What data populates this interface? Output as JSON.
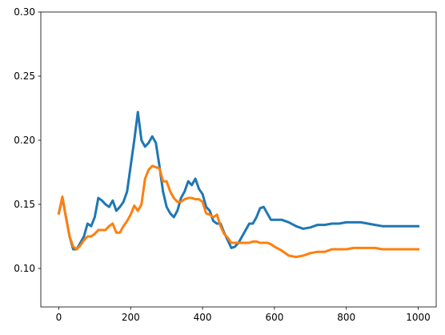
{
  "chart_data": {
    "type": "line",
    "x": [
      0,
      10,
      20,
      30,
      40,
      50,
      60,
      70,
      80,
      90,
      100,
      110,
      120,
      130,
      140,
      150,
      160,
      170,
      180,
      190,
      200,
      210,
      220,
      230,
      240,
      250,
      260,
      270,
      280,
      290,
      300,
      310,
      320,
      330,
      340,
      350,
      360,
      370,
      380,
      390,
      400,
      410,
      420,
      430,
      440,
      450,
      460,
      470,
      480,
      490,
      500,
      510,
      520,
      530,
      540,
      550,
      560,
      570,
      580,
      590,
      600,
      620,
      640,
      660,
      680,
      700,
      720,
      740,
      760,
      780,
      800,
      820,
      840,
      860,
      880,
      900,
      920,
      940,
      960,
      980,
      1000
    ],
    "series": [
      {
        "color": "#1f77b4",
        "values": [
          0.143,
          0.155,
          0.14,
          0.125,
          0.115,
          0.115,
          0.12,
          0.125,
          0.135,
          0.133,
          0.14,
          0.155,
          0.153,
          0.15,
          0.148,
          0.153,
          0.145,
          0.148,
          0.152,
          0.16,
          0.18,
          0.2,
          0.222,
          0.2,
          0.195,
          0.198,
          0.203,
          0.198,
          0.18,
          0.16,
          0.148,
          0.143,
          0.14,
          0.145,
          0.155,
          0.16,
          0.168,
          0.165,
          0.17,
          0.162,
          0.158,
          0.148,
          0.145,
          0.137,
          0.135,
          0.135,
          0.128,
          0.122,
          0.116,
          0.117,
          0.12,
          0.125,
          0.13,
          0.135,
          0.135,
          0.14,
          0.147,
          0.148,
          0.143,
          0.138,
          0.138,
          0.138,
          0.136,
          0.133,
          0.131,
          0.132,
          0.134,
          0.134,
          0.135,
          0.135,
          0.136,
          0.136,
          0.136,
          0.135,
          0.134,
          0.133,
          0.133,
          0.133,
          0.133,
          0.133,
          0.133
        ]
      },
      {
        "color": "#ff7f0e",
        "values": [
          0.143,
          0.156,
          0.14,
          0.125,
          0.117,
          0.115,
          0.118,
          0.122,
          0.125,
          0.125,
          0.127,
          0.13,
          0.13,
          0.13,
          0.133,
          0.135,
          0.128,
          0.128,
          0.133,
          0.137,
          0.142,
          0.149,
          0.145,
          0.15,
          0.17,
          0.177,
          0.18,
          0.179,
          0.178,
          0.168,
          0.168,
          0.16,
          0.155,
          0.152,
          0.152,
          0.154,
          0.155,
          0.155,
          0.154,
          0.154,
          0.152,
          0.143,
          0.142,
          0.14,
          0.142,
          0.133,
          0.127,
          0.124,
          0.12,
          0.12,
          0.12,
          0.12,
          0.12,
          0.12,
          0.121,
          0.121,
          0.12,
          0.12,
          0.12,
          0.119,
          0.117,
          0.114,
          0.11,
          0.109,
          0.11,
          0.112,
          0.113,
          0.113,
          0.115,
          0.115,
          0.115,
          0.116,
          0.116,
          0.116,
          0.116,
          0.115,
          0.115,
          0.115,
          0.115,
          0.115,
          0.115
        ]
      }
    ],
    "xlim": [
      -50,
      1050
    ],
    "xticks": [
      0,
      200,
      400,
      600,
      800,
      1000
    ],
    "ylim": [
      0.07,
      0.3
    ],
    "yticks": [
      {
        "value": 0.1,
        "label": "0.10"
      },
      {
        "value": 0.15,
        "label": "0.15"
      },
      {
        "value": 0.2,
        "label": "0.20"
      },
      {
        "value": 0.25,
        "label": "0.25"
      },
      {
        "value": 0.3,
        "label": "0.30"
      }
    ],
    "grid": false
  }
}
